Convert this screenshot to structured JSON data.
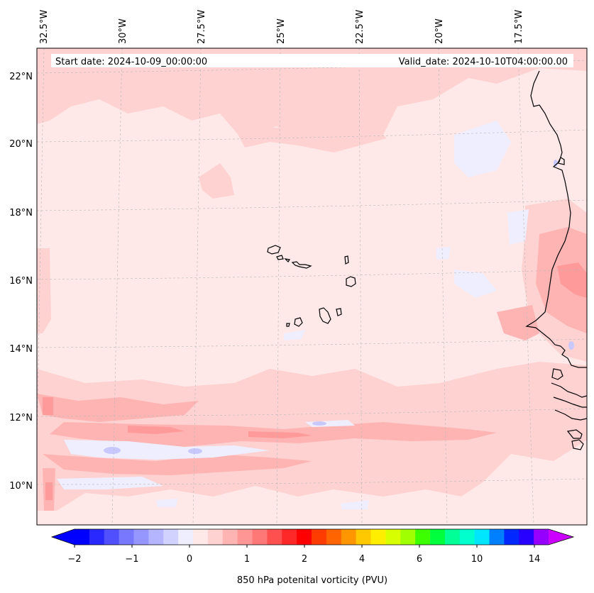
{
  "header": {
    "start_date": "Start date: 2024-10-09_00:00:00",
    "valid_date": "Valid_date: 2024-10-10T04:00:00.00"
  },
  "map": {
    "lon_labels": [
      "32.5°W",
      "30°W",
      "27.5°W",
      "25°W",
      "22.5°W",
      "20°W",
      "17.5°W"
    ],
    "lat_labels": [
      "22°N",
      "20°N",
      "18°N",
      "16°N",
      "14°N",
      "12°N",
      "10°N"
    ],
    "colors": {
      "background": "#ffe8e8",
      "light_pink": "#ffd2d2",
      "pink": "#ffb4b4",
      "rose": "#ff9a9a",
      "pale_blue": "#eeeeff",
      "blue": "#c8c8ff",
      "coast": "#000000"
    }
  },
  "colorbar": {
    "label": "850 hPa potenital vorticity (PVU)",
    "tick_labels": [
      "−2",
      "−1",
      "0",
      "1",
      "2",
      "4",
      "6",
      "10",
      "14"
    ],
    "colors": [
      "#0000ff",
      "#2828ff",
      "#5050ff",
      "#7878ff",
      "#9696ff",
      "#b4b4ff",
      "#d2d2ff",
      "#eeeeff",
      "#ffe8e8",
      "#ffd2d2",
      "#ffb4b4",
      "#ff9696",
      "#ff7878",
      "#ff5050",
      "#ff2828",
      "#ff0000",
      "#ff3c00",
      "#ff6400",
      "#ff9600",
      "#ffc800",
      "#ffee00",
      "#d8ff00",
      "#a0ff00",
      "#3cff00",
      "#00ff3c",
      "#00ff96",
      "#00ffcc",
      "#00e6ff",
      "#0080ff",
      "#0028ff",
      "#2800ff",
      "#9600ff"
    ],
    "arrow_low": "#0000ff",
    "arrow_high": "#cc00ff"
  }
}
